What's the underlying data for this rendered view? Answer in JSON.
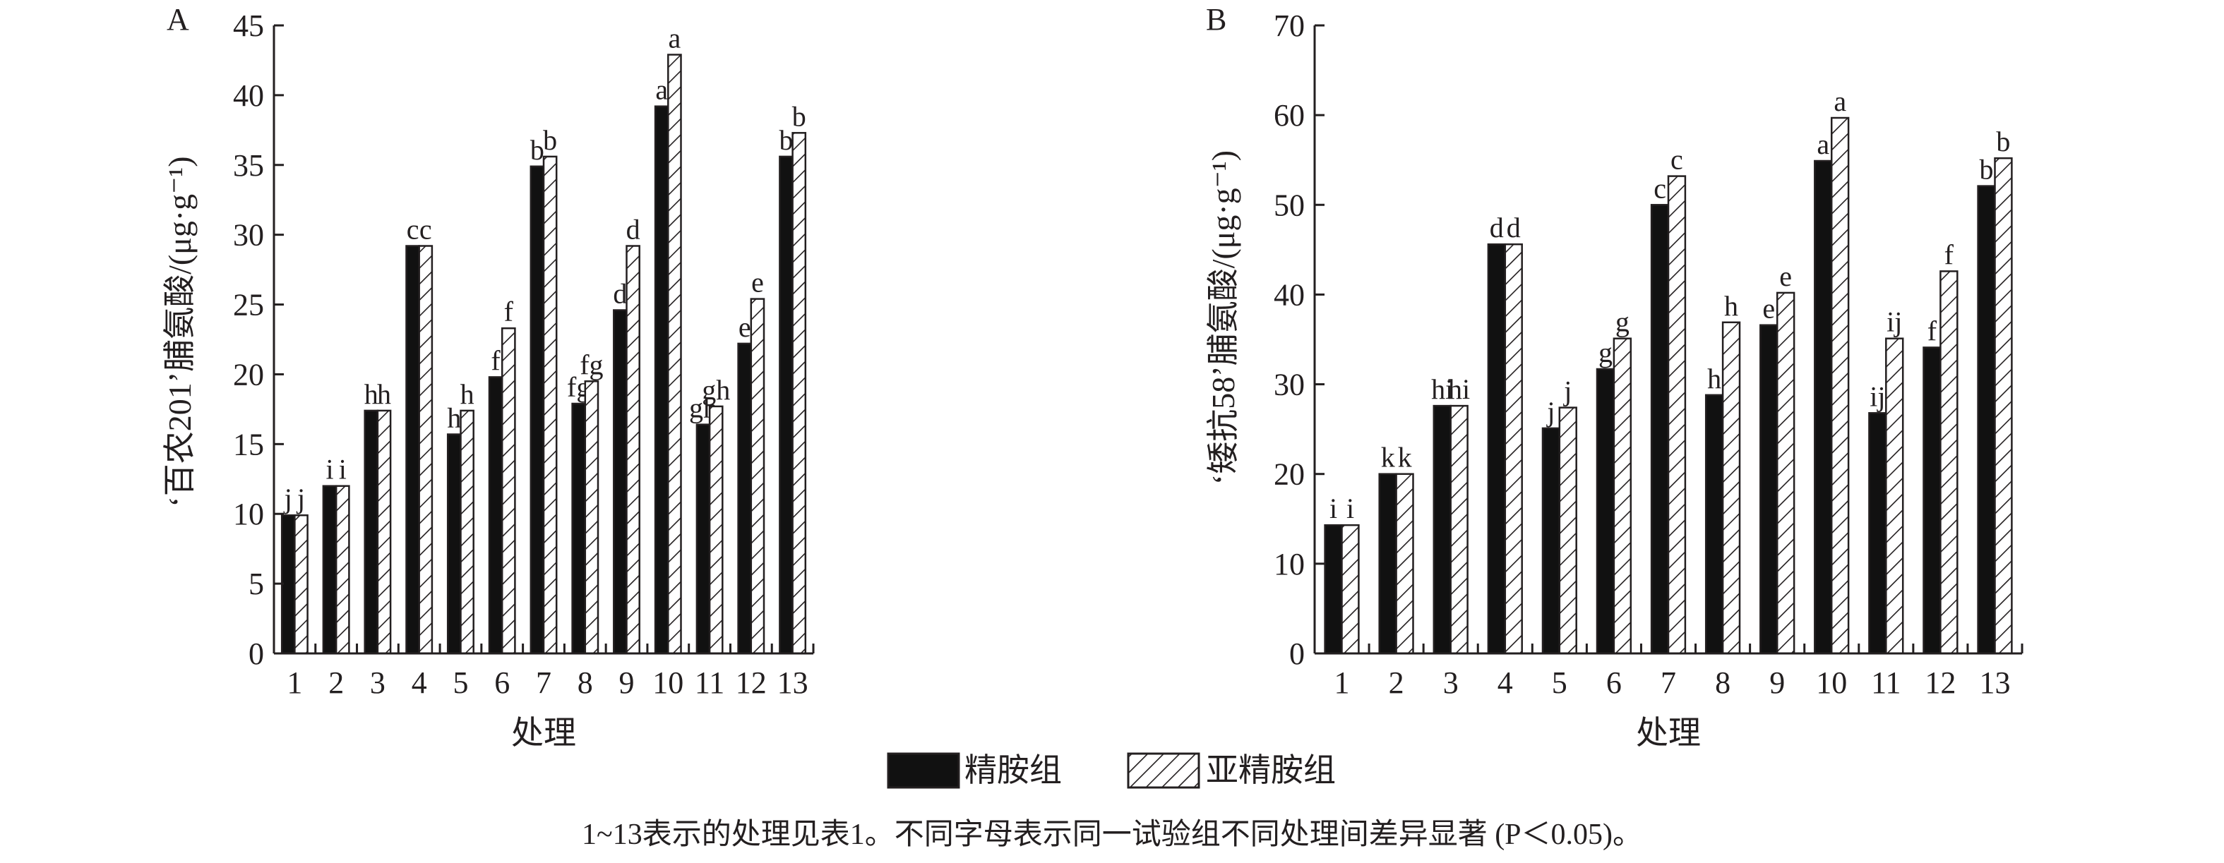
{
  "colors": {
    "refined": "#111111",
    "sub_hatch": "#231f20",
    "axis": "#231f20",
    "background": "#ffffff"
  },
  "legend": {
    "items": [
      "精胺组",
      "亚精胺组"
    ],
    "placement": "bottom-center"
  },
  "caption": "1~13表示的处理见表1。不同字母表示同一试验组不同处理间差异显著 (P＜0.05)。",
  "chart_data": [
    {
      "panel": "A",
      "type": "bar",
      "xlabel": "处理",
      "ylabel": "‘百农201’脯氨酸/(μg·g⁻¹)",
      "ylim": [
        0,
        45
      ],
      "yticks": [
        0,
        5,
        10,
        15,
        20,
        25,
        30,
        35,
        40,
        45
      ],
      "grid": false,
      "categories": [
        "1",
        "2",
        "3",
        "4",
        "5",
        "6",
        "7",
        "8",
        "9",
        "10",
        "11",
        "12",
        "13"
      ],
      "series": [
        {
          "name": "精胺组",
          "values": [
            9.9,
            12.0,
            17.4,
            29.2,
            15.7,
            19.8,
            34.9,
            17.9,
            24.6,
            39.2,
            16.4,
            22.2,
            35.6
          ],
          "labels": [
            "j",
            "i",
            "h",
            "c",
            "h",
            "f",
            "b",
            "fg",
            "d",
            "a",
            "gh",
            "e",
            "b"
          ]
        },
        {
          "name": "亚精胺组",
          "values": [
            9.9,
            12.0,
            17.4,
            29.2,
            17.4,
            23.3,
            35.6,
            19.5,
            29.2,
            42.9,
            17.7,
            25.4,
            37.3
          ],
          "labels": [
            "j",
            "i",
            "h",
            "c",
            "h",
            "f",
            "b",
            "fg",
            "d",
            "a",
            "gh",
            "e",
            "b"
          ]
        }
      ]
    },
    {
      "panel": "B",
      "type": "bar",
      "xlabel": "处理",
      "ylabel": "‘矮抗58’脯氨酸/(μg·g⁻¹)",
      "ylim": [
        0,
        70
      ],
      "yticks": [
        0,
        10,
        20,
        30,
        40,
        50,
        60,
        70
      ],
      "grid": false,
      "categories": [
        "1",
        "2",
        "3",
        "4",
        "5",
        "6",
        "7",
        "8",
        "9",
        "10",
        "11",
        "12",
        "13"
      ],
      "series": [
        {
          "name": "精胺组",
          "values": [
            14.3,
            20.0,
            27.6,
            45.6,
            25.1,
            31.7,
            50.0,
            28.8,
            36.6,
            54.9,
            26.8,
            34.1,
            52.1
          ],
          "labels": [
            "i",
            "k",
            "hi",
            "d",
            "j",
            "g",
            "c",
            "h",
            "e",
            "a",
            "ij",
            "f",
            "b"
          ]
        },
        {
          "name": "亚精胺组",
          "values": [
            14.3,
            20.0,
            27.6,
            45.6,
            27.4,
            35.1,
            53.2,
            36.9,
            40.2,
            59.7,
            35.1,
            42.6,
            55.2
          ],
          "labels": [
            "i",
            "k",
            "hi",
            "d",
            "j",
            "g",
            "c",
            "h",
            "e",
            "a",
            "ij",
            "f",
            "b"
          ]
        }
      ]
    }
  ]
}
